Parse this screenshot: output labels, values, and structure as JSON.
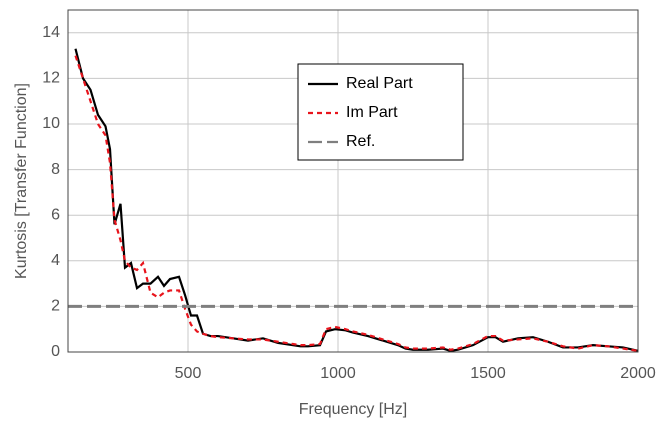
{
  "chart_data": {
    "type": "line",
    "xlabel": "Frequency [Hz]",
    "ylabel": "Kurtosis [Transfer Function]",
    "x": [
      125,
      150,
      175,
      200,
      225,
      240,
      255,
      275,
      290,
      310,
      330,
      350,
      375,
      400,
      420,
      440,
      470,
      490,
      510,
      530,
      550,
      575,
      600,
      650,
      700,
      750,
      800,
      850,
      875,
      900,
      940,
      960,
      990,
      1025,
      1050,
      1100,
      1150,
      1200,
      1225,
      1250,
      1300,
      1350,
      1375,
      1400,
      1450,
      1500,
      1525,
      1550,
      1600,
      1650,
      1700,
      1750,
      1800,
      1850,
      1900,
      1950,
      2000
    ],
    "series": [
      {
        "name": "Real Part",
        "color": "#000000",
        "dash": "solid",
        "values": [
          13.3,
          12.0,
          11.5,
          10.4,
          9.9,
          8.9,
          5.6,
          6.5,
          3.7,
          3.9,
          2.8,
          3.0,
          3.0,
          3.3,
          2.9,
          3.2,
          3.3,
          2.5,
          1.6,
          1.6,
          0.8,
          0.7,
          0.7,
          0.6,
          0.5,
          0.6,
          0.4,
          0.3,
          0.25,
          0.25,
          0.3,
          0.9,
          1.0,
          0.95,
          0.85,
          0.7,
          0.5,
          0.3,
          0.15,
          0.1,
          0.1,
          0.15,
          0.05,
          0.1,
          0.3,
          0.65,
          0.65,
          0.45,
          0.6,
          0.65,
          0.45,
          0.2,
          0.2,
          0.3,
          0.25,
          0.2,
          0.05
        ]
      },
      {
        "name": "Im Part",
        "color": "#e8141c",
        "dash": "dotted",
        "values": [
          13.0,
          12.0,
          11.0,
          10.0,
          9.5,
          8.3,
          5.8,
          4.9,
          4.0,
          3.7,
          3.6,
          3.9,
          2.6,
          2.4,
          2.6,
          2.7,
          2.7,
          1.9,
          1.2,
          0.9,
          0.8,
          0.7,
          0.65,
          0.6,
          0.55,
          0.55,
          0.45,
          0.35,
          0.3,
          0.3,
          0.35,
          1.0,
          1.1,
          1.0,
          0.9,
          0.75,
          0.55,
          0.35,
          0.2,
          0.15,
          0.15,
          0.2,
          0.1,
          0.15,
          0.35,
          0.7,
          0.7,
          0.5,
          0.55,
          0.6,
          0.45,
          0.25,
          0.15,
          0.3,
          0.25,
          0.15,
          0.05
        ]
      },
      {
        "name": "Ref.",
        "color": "#7f7f7f",
        "dash": "dashed",
        "x": [
          100,
          2000
        ],
        "values": [
          2,
          2
        ]
      }
    ],
    "xlim": [
      100,
      2000
    ],
    "xticks": [
      500,
      1000,
      1500,
      2000
    ],
    "ylim": [
      0,
      15
    ],
    "yticks": [
      0,
      2,
      4,
      6,
      8,
      10,
      12,
      14
    ],
    "grid": true,
    "legend": "upper right"
  }
}
